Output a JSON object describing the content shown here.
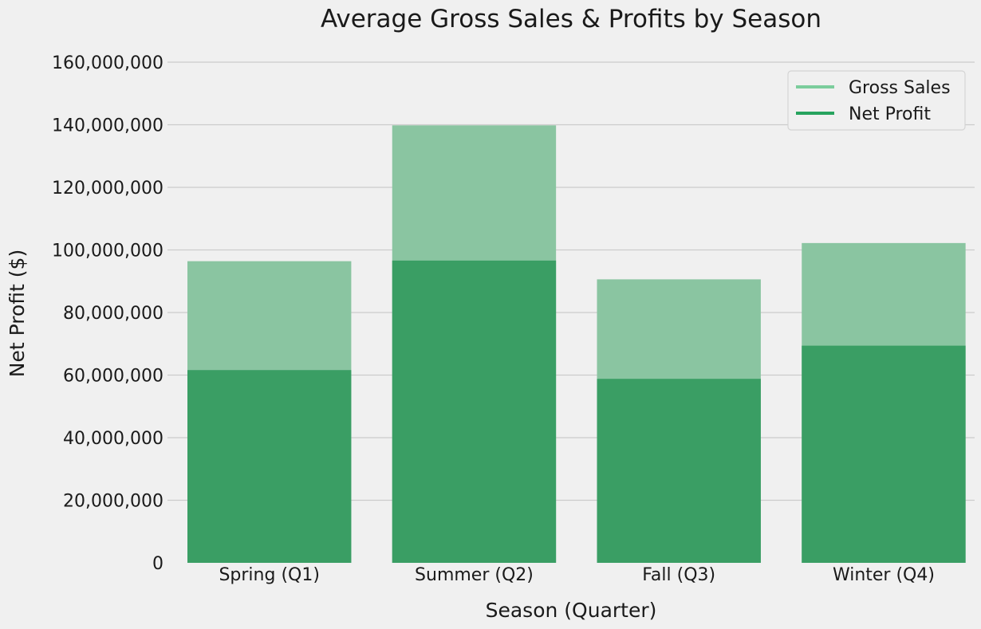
{
  "chart_data": {
    "type": "bar",
    "title": "Average Gross Sales & Profits by Season",
    "xlabel": "Season (Quarter)",
    "ylabel": "Net Profit ($)",
    "categories": [
      "Spring (Q1)",
      "Summer (Q2)",
      "Fall (Q3)",
      "Winter (Q4)"
    ],
    "series": [
      {
        "name": "Gross Sales",
        "values": [
          96400000,
          139800000,
          90600000,
          102200000
        ],
        "color": "#8ac5a1"
      },
      {
        "name": "Net Profit",
        "values": [
          61600000,
          96600000,
          58800000,
          69400000
        ],
        "color": "#3a9e64"
      }
    ],
    "legend_colors": [
      "#7ccd9c",
      "#27a35e"
    ],
    "ylim": [
      0,
      160000000
    ],
    "yticks": [
      0,
      20000000,
      40000000,
      60000000,
      80000000,
      100000000,
      120000000,
      140000000,
      160000000
    ],
    "ytick_labels": [
      "0",
      "20,000,000",
      "40,000,000",
      "60,000,000",
      "80,000,000",
      "100,000,000",
      "120,000,000",
      "140,000,000",
      "160,000,000"
    ],
    "grid": true,
    "legend_position": "top-right",
    "background": "#f0f0f0"
  }
}
